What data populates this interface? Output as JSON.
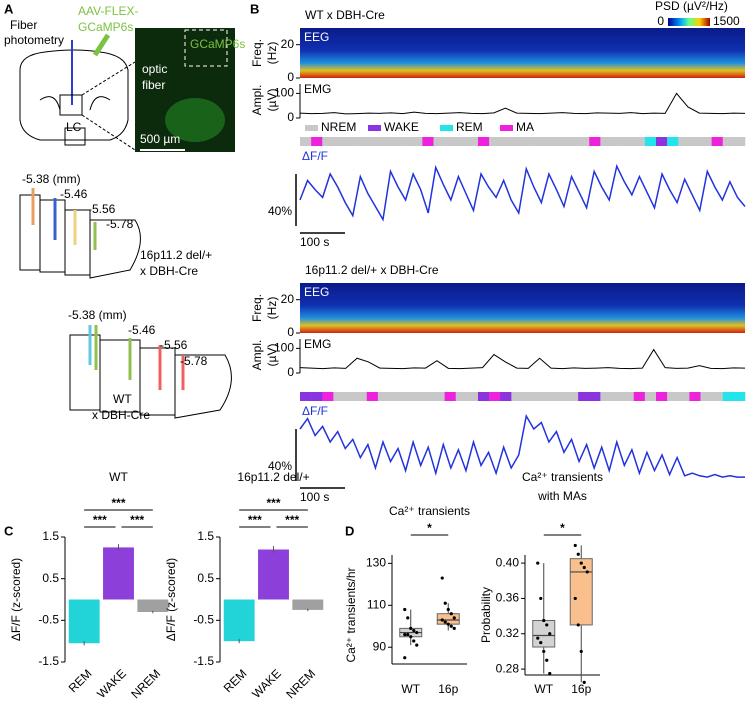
{
  "panel_a": {
    "label": "A",
    "fiber_photometry": [
      "Fiber",
      "photometry"
    ],
    "virus": [
      "AAV-FLEX-",
      "GCaMP6s"
    ],
    "image_label": "GCaMP6s",
    "optic_fiber": [
      "optic",
      "fiber"
    ],
    "region": "LC",
    "scale_bar": "500 µm",
    "sections": [
      {
        "coords": [
          "-5.38 (mm)",
          "-5.46",
          "-5.56",
          "-5.78"
        ],
        "group": [
          "16p11.2 del/+",
          "x DBH-Cre"
        ]
      },
      {
        "coords": [
          "-5.38 (mm)",
          "-5.46",
          "-5.56",
          "-5.78"
        ],
        "group": [
          "WT",
          "x DBH-Cre"
        ]
      }
    ]
  },
  "panel_b": {
    "label": "B",
    "psd": {
      "label": "PSD (µV²/Hz)",
      "ticks": [
        0,
        1500
      ]
    },
    "states": [
      {
        "name": "NREM",
        "color": "#c8c8c8"
      },
      {
        "name": "WAKE",
        "color": "#8c33e0"
      },
      {
        "name": "REM",
        "color": "#22e5ec"
      },
      {
        "name": "MA",
        "color": "#ee22dd"
      }
    ],
    "blocks": [
      {
        "title": "WT x DBH-Cre",
        "eeg_label": "EEG",
        "freq_label": [
          "Freq.",
          "(Hz)"
        ],
        "freq_ylim": [
          0,
          30
        ],
        "freq_yticks": [
          20,
          0
        ],
        "emg_label": "EMG",
        "ampl_label": [
          "Ampl.",
          "(µV)"
        ],
        "emg_ylim": [
          0,
          130
        ],
        "emg_yticks": [
          100,
          0
        ],
        "emg": [
          20,
          18,
          19,
          22,
          17,
          18,
          20,
          19,
          21,
          18,
          24,
          19,
          18,
          20,
          22,
          19,
          18,
          21,
          40,
          20,
          19,
          18,
          20,
          22,
          19,
          18,
          21,
          20,
          19,
          22,
          18,
          20,
          19,
          100,
          45,
          20,
          19,
          18,
          20,
          19
        ],
        "hypnogram": [
          "NREM",
          "MA",
          "NREM",
          "NREM",
          "NREM",
          "NREM",
          "NREM",
          "NREM",
          "NREM",
          "NREM",
          "NREM",
          "MA",
          "NREM",
          "NREM",
          "NREM",
          "NREM",
          "MA",
          "NREM",
          "NREM",
          "NREM",
          "NREM",
          "NREM",
          "NREM",
          "NREM",
          "NREM",
          "NREM",
          "MA",
          "NREM",
          "NREM",
          "NREM",
          "NREM",
          "REM",
          "WAKE",
          "REM",
          "NREM",
          "NREM",
          "NREM",
          "MA",
          "NREM",
          "NREM"
        ],
        "dff_label": "ΔF/F",
        "dff": [
          20,
          35,
          28,
          22,
          40,
          30,
          18,
          8,
          38,
          25,
          15,
          5,
          42,
          30,
          20,
          40,
          28,
          10,
          45,
          32,
          20,
          38,
          25,
          12,
          40,
          30,
          22,
          35,
          20,
          10,
          44,
          30,
          18,
          40,
          28,
          15,
          38,
          26,
          14,
          42,
          30,
          20,
          46,
          34,
          24,
          38,
          26,
          14,
          40,
          28,
          18,
          36,
          24,
          12,
          42,
          30,
          20,
          34,
          22,
          15
        ],
        "dff_scale": {
          "value": 40,
          "label": "40%"
        },
        "time_scale": {
          "value": 100,
          "label": "100 s"
        }
      },
      {
        "title": "16p11.2 del/+ x DBH-Cre",
        "eeg_label": "EEG",
        "freq_label": [
          "Freq.",
          "(Hz)"
        ],
        "freq_ylim": [
          0,
          30
        ],
        "freq_yticks": [
          20,
          0
        ],
        "emg_label": "EMG",
        "ampl_label": [
          "Ampl.",
          "(µV)"
        ],
        "emg_ylim": [
          0,
          130
        ],
        "emg_yticks": [
          100,
          0
        ],
        "emg": [
          22,
          20,
          18,
          21,
          19,
          60,
          45,
          20,
          19,
          18,
          21,
          20,
          50,
          19,
          18,
          20,
          22,
          75,
          45,
          20,
          19,
          60,
          20,
          18,
          21,
          19,
          20,
          22,
          19,
          18,
          20,
          95,
          22,
          19,
          20,
          30,
          19,
          18,
          21,
          20
        ],
        "hypnogram": [
          "WAKE",
          "WAKE",
          "MA",
          "NREM",
          "NREM",
          "NREM",
          "MA",
          "NREM",
          "NREM",
          "NREM",
          "NREM",
          "NREM",
          "NREM",
          "MA",
          "NREM",
          "NREM",
          "WAKE",
          "MA",
          "WAKE",
          "NREM",
          "NREM",
          "NREM",
          "NREM",
          "NREM",
          "NREM",
          "WAKE",
          "WAKE",
          "NREM",
          "NREM",
          "NREM",
          "MA",
          "NREM",
          "MA",
          "NREM",
          "NREM",
          "MA",
          "NREM",
          "NREM",
          "REM",
          "REM"
        ],
        "dff_label": "ΔF/F",
        "dff": [
          40,
          48,
          35,
          42,
          30,
          38,
          25,
          32,
          18,
          28,
          10,
          30,
          15,
          25,
          8,
          30,
          12,
          26,
          6,
          28,
          10,
          24,
          8,
          30,
          12,
          22,
          6,
          26,
          10,
          20,
          50,
          40,
          45,
          30,
          38,
          22,
          32,
          15,
          28,
          10,
          26,
          8,
          30,
          12,
          24,
          6,
          22,
          8,
          20,
          5,
          18,
          4,
          6,
          4,
          3,
          5,
          3,
          4,
          3,
          3
        ],
        "dff_scale": {
          "value": 40,
          "label": "40%"
        },
        "time_scale": {
          "value": 100,
          "label": "100 s"
        }
      }
    ]
  },
  "panel_c": {
    "label": "C",
    "charts": [
      {
        "type": "bar",
        "title": "WT",
        "ylabel": "ΔF/F (z-scored)",
        "categories": [
          "REM",
          "WAKE",
          "NREM"
        ],
        "values": [
          -1.05,
          1.25,
          -0.3
        ],
        "errors": [
          0.05,
          0.08,
          0.03
        ],
        "colors": [
          "#22d3d8",
          "#8c3fd9",
          "#a0a0a0"
        ],
        "ylim": [
          -1.5,
          1.5
        ],
        "yticks": [
          -1.5,
          -0.5,
          0.5,
          1.5
        ],
        "significance": [
          "***",
          "***",
          "***"
        ]
      },
      {
        "type": "bar",
        "title": "16p11.2 del/+",
        "ylabel": "ΔF/F (z-scored)",
        "categories": [
          "REM",
          "WAKE",
          "NREM"
        ],
        "values": [
          -1.0,
          1.2,
          -0.25
        ],
        "errors": [
          0.05,
          0.08,
          0.03
        ],
        "colors": [
          "#22d3d8",
          "#8c3fd9",
          "#a0a0a0"
        ],
        "ylim": [
          -1.5,
          1.5
        ],
        "yticks": [
          -1.5,
          -0.5,
          0.5,
          1.5
        ],
        "significance": [
          "***",
          "***",
          "***"
        ]
      }
    ]
  },
  "panel_d": {
    "label": "D",
    "charts": [
      {
        "type": "box",
        "title_lines": [
          "Ca²⁺ transients"
        ],
        "ylabel": "Ca²⁺ transients/hr",
        "categories": [
          "WT",
          "16p"
        ],
        "colors": [
          "#d3d3d3",
          "#f9c08e"
        ],
        "boxes": [
          {
            "min": 91,
            "q1": 95,
            "median": 97,
            "q3": 99,
            "max": 108
          },
          {
            "min": 98,
            "q1": 101,
            "median": 103,
            "q3": 106,
            "max": 111
          }
        ],
        "points": [
          [
            108,
            104,
            99,
            98,
            97,
            96,
            96,
            95,
            93,
            91,
            85
          ],
          [
            123,
            111,
            108,
            106,
            104,
            103,
            102,
            101,
            100,
            99
          ]
        ],
        "ylim": [
          82,
          134
        ],
        "yticks": [
          90,
          110,
          130
        ],
        "significance": "*"
      },
      {
        "type": "box",
        "title_lines": [
          "Ca²⁺ transients",
          "with MAs"
        ],
        "ylabel": "Probability",
        "categories": [
          "WT",
          "16p"
        ],
        "colors": [
          "#d3d3d3",
          "#f9c08e"
        ],
        "boxes": [
          {
            "min": 0.275,
            "q1": 0.305,
            "median": 0.318,
            "q3": 0.335,
            "max": 0.4
          },
          {
            "min": 0.265,
            "q1": 0.33,
            "median": 0.39,
            "q3": 0.405,
            "max": 0.42
          }
        ],
        "points": [
          [
            0.4,
            0.36,
            0.335,
            0.33,
            0.32,
            0.315,
            0.31,
            0.3,
            0.29,
            0.275
          ],
          [
            0.42,
            0.41,
            0.4,
            0.395,
            0.39,
            0.36,
            0.33,
            0.3,
            0.265
          ]
        ],
        "ylim": [
          0.262,
          0.425
        ],
        "yticks": [
          0.28,
          0.32,
          0.36,
          {
            "value": 0.4,
            "label": "0.40"
          }
        ],
        "significance": "*"
      }
    ]
  }
}
